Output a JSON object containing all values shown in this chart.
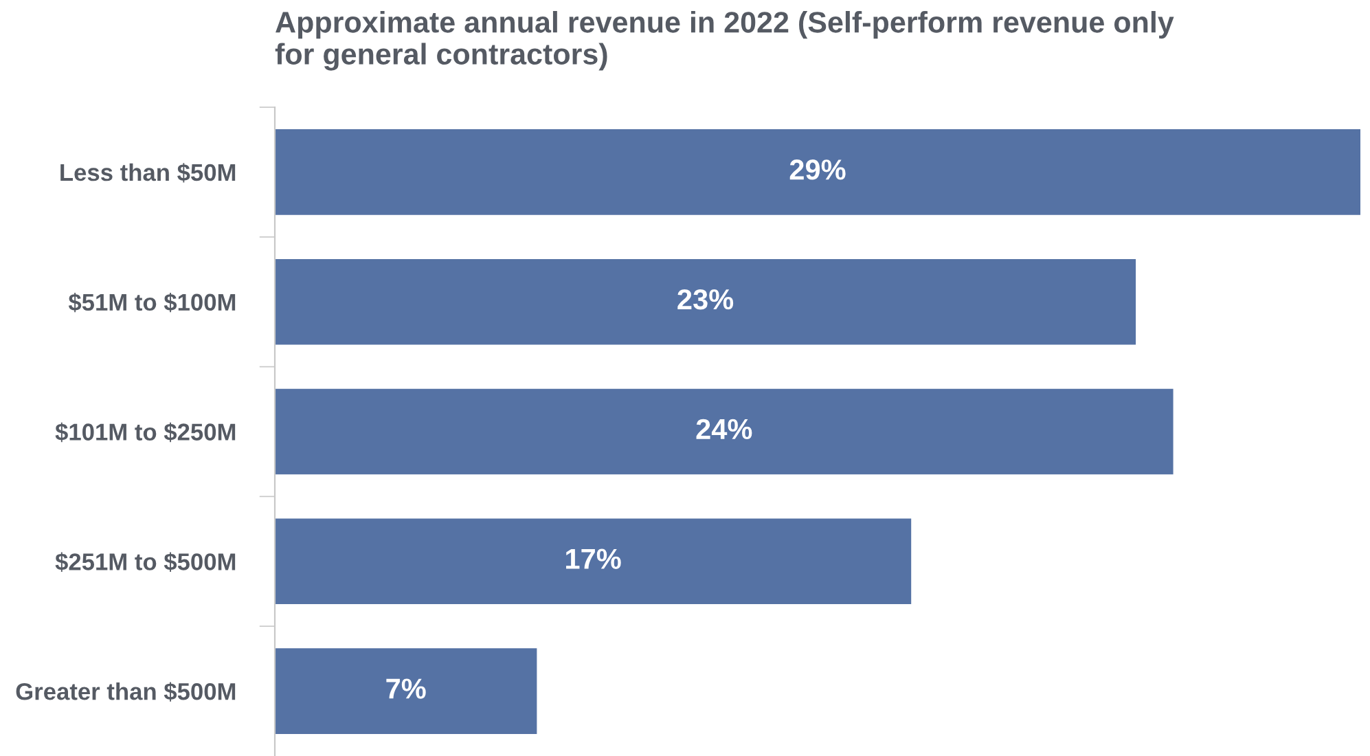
{
  "chart_data": {
    "type": "bar",
    "orientation": "horizontal",
    "title": "Approximate annual revenue in 2022 (Self-perform revenue only\nfor general contractors)",
    "categories": [
      "Less than $50M",
      "$51M to $100M",
      "$101M to $250M",
      "$251M to $500M",
      "Greater than $500M"
    ],
    "values": [
      29,
      23,
      24,
      17,
      7
    ],
    "value_labels": [
      "29%",
      "23%",
      "24%",
      "17%",
      "7%"
    ],
    "color": "#5572a4",
    "xlim": [
      0,
      29
    ],
    "tick_labels": "y",
    "grid": false,
    "legend": false
  }
}
